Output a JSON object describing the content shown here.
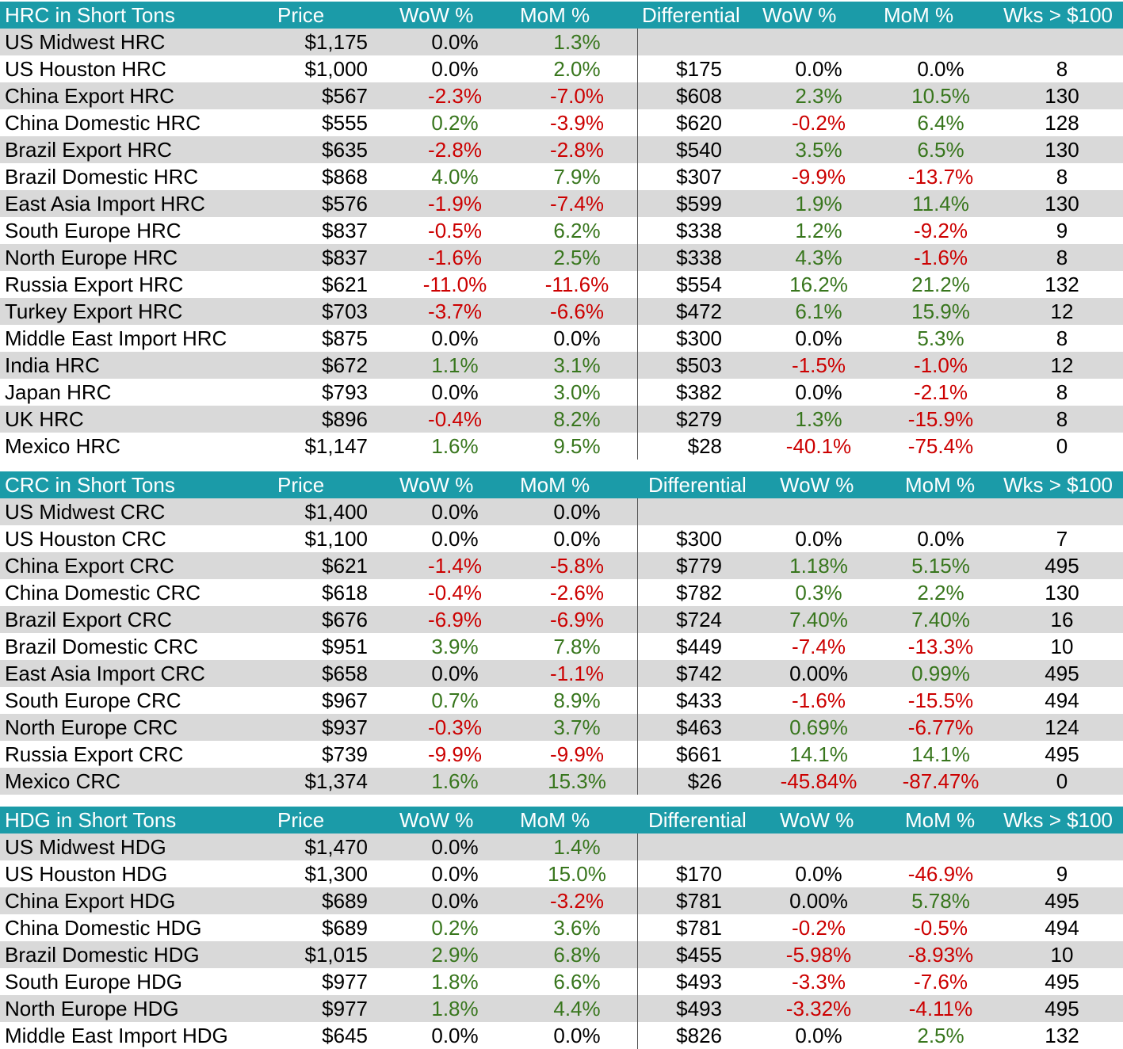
{
  "colors": {
    "header_bg": "#1B9BA8",
    "header_text": "#FFFFFF",
    "stripe": "#D9D9D9",
    "positive": "#38761D",
    "negative": "#CC0000"
  },
  "tables": [
    {
      "header": {
        "title": "HRC in Short Tons",
        "price": "Price",
        "wow": "WoW %",
        "mom": "MoM %",
        "diff": "Differential",
        "dwow": "WoW %",
        "dmom": "MoM %",
        "wks": "Wks > $100"
      },
      "rows": [
        {
          "name": "US Midwest HRC",
          "price": "$1,175",
          "wow": "0.0%",
          "mom": "1.3%",
          "diff": "",
          "dwow": "",
          "dmom": "",
          "wks": ""
        },
        {
          "name": "US Houston HRC",
          "price": "$1,000",
          "wow": "0.0%",
          "mom": "2.0%",
          "diff": "$175",
          "dwow": "0.0%",
          "dmom": "0.0%",
          "wks": "8"
        },
        {
          "name": "China Export HRC",
          "price": "$567",
          "wow": "-2.3%",
          "mom": "-7.0%",
          "diff": "$608",
          "dwow": "2.3%",
          "dmom": "10.5%",
          "wks": "130"
        },
        {
          "name": "China Domestic HRC",
          "price": "$555",
          "wow": "0.2%",
          "mom": "-3.9%",
          "diff": "$620",
          "dwow": "-0.2%",
          "dmom": "6.4%",
          "wks": "128"
        },
        {
          "name": "Brazil Export HRC",
          "price": "$635",
          "wow": "-2.8%",
          "mom": "-2.8%",
          "diff": "$540",
          "dwow": "3.5%",
          "dmom": "6.5%",
          "wks": "130"
        },
        {
          "name": "Brazil Domestic HRC",
          "price": "$868",
          "wow": "4.0%",
          "mom": "7.9%",
          "diff": "$307",
          "dwow": "-9.9%",
          "dmom": "-13.7%",
          "wks": "8"
        },
        {
          "name": "East Asia Import HRC",
          "price": "$576",
          "wow": "-1.9%",
          "mom": "-7.4%",
          "diff": "$599",
          "dwow": "1.9%",
          "dmom": "11.4%",
          "wks": "130"
        },
        {
          "name": "South Europe HRC",
          "price": "$837",
          "wow": "-0.5%",
          "mom": "6.2%",
          "diff": "$338",
          "dwow": "1.2%",
          "dmom": "-9.2%",
          "wks": "9"
        },
        {
          "name": "North Europe HRC",
          "price": "$837",
          "wow": "-1.6%",
          "mom": "2.5%",
          "diff": "$338",
          "dwow": "4.3%",
          "dmom": "-1.6%",
          "wks": "8"
        },
        {
          "name": "Russia Export HRC",
          "price": "$621",
          "wow": "-11.0%",
          "mom": "-11.6%",
          "diff": "$554",
          "dwow": "16.2%",
          "dmom": "21.2%",
          "wks": "132"
        },
        {
          "name": "Turkey Export HRC",
          "price": "$703",
          "wow": "-3.7%",
          "mom": "-6.6%",
          "diff": "$472",
          "dwow": "6.1%",
          "dmom": "15.9%",
          "wks": "12"
        },
        {
          "name": "Middle East Import HRC",
          "price": "$875",
          "wow": "0.0%",
          "mom": "0.0%",
          "diff": "$300",
          "dwow": "0.0%",
          "dmom": "5.3%",
          "wks": "8"
        },
        {
          "name": "India HRC",
          "price": "$672",
          "wow": "1.1%",
          "mom": "3.1%",
          "diff": "$503",
          "dwow": "-1.5%",
          "dmom": "-1.0%",
          "wks": "12"
        },
        {
          "name": "Japan HRC",
          "price": "$793",
          "wow": "0.0%",
          "mom": "3.0%",
          "diff": "$382",
          "dwow": "0.0%",
          "dmom": "-2.1%",
          "wks": "8"
        },
        {
          "name": "UK HRC",
          "price": "$896",
          "wow": "-0.4%",
          "mom": "8.2%",
          "diff": "$279",
          "dwow": "1.3%",
          "dmom": "-15.9%",
          "wks": "8"
        },
        {
          "name": "Mexico HRC",
          "price": "$1,147",
          "wow": "1.6%",
          "mom": "9.5%",
          "diff": "$28",
          "dwow": "-40.1%",
          "dmom": "-75.4%",
          "wks": "0"
        }
      ]
    },
    {
      "header": {
        "title": "CRC in Short Tons",
        "price": "Price",
        "wow": "WoW %",
        "mom": "MoM %",
        "diff": "Differential",
        "dwow": "WoW %",
        "dmom": "MoM %",
        "wks": "Wks > $100"
      },
      "rows": [
        {
          "name": "US Midwest CRC",
          "price": "$1,400",
          "wow": "0.0%",
          "mom": "0.0%",
          "diff": "",
          "dwow": "",
          "dmom": "",
          "wks": ""
        },
        {
          "name": "US Houston CRC",
          "price": "$1,100",
          "wow": "0.0%",
          "mom": "0.0%",
          "diff": "$300",
          "dwow": "0.0%",
          "dmom": "0.0%",
          "wks": "7"
        },
        {
          "name": "China Export CRC",
          "price": "$621",
          "wow": "-1.4%",
          "mom": "-5.8%",
          "diff": "$779",
          "dwow": "1.18%",
          "dmom": "5.15%",
          "wks": "495"
        },
        {
          "name": "China Domestic CRC",
          "price": "$618",
          "wow": "-0.4%",
          "mom": "-2.6%",
          "diff": "$782",
          "dwow": "0.3%",
          "dmom": "2.2%",
          "wks": "130"
        },
        {
          "name": "Brazil Export CRC",
          "price": "$676",
          "wow": "-6.9%",
          "mom": "-6.9%",
          "diff": "$724",
          "dwow": "7.40%",
          "dmom": "7.40%",
          "wks": "16"
        },
        {
          "name": "Brazil Domestic CRC",
          "price": "$951",
          "wow": "3.9%",
          "mom": "7.8%",
          "diff": "$449",
          "dwow": "-7.4%",
          "dmom": "-13.3%",
          "wks": "10"
        },
        {
          "name": "East Asia Import CRC",
          "price": "$658",
          "wow": "0.0%",
          "mom": "-1.1%",
          "diff": "$742",
          "dwow": "0.00%",
          "dmom": "0.99%",
          "wks": "495"
        },
        {
          "name": "South Europe CRC",
          "price": "$967",
          "wow": "0.7%",
          "mom": "8.9%",
          "diff": "$433",
          "dwow": "-1.6%",
          "dmom": "-15.5%",
          "wks": "494"
        },
        {
          "name": "North Europe CRC",
          "price": "$937",
          "wow": "-0.3%",
          "mom": "3.7%",
          "diff": "$463",
          "dwow": "0.69%",
          "dmom": "-6.77%",
          "wks": "124"
        },
        {
          "name": "Russia Export CRC",
          "price": "$739",
          "wow": "-9.9%",
          "mom": "-9.9%",
          "diff": "$661",
          "dwow": "14.1%",
          "dmom": "14.1%",
          "wks": "495"
        },
        {
          "name": "Mexico CRC",
          "price": "$1,374",
          "wow": "1.6%",
          "mom": "15.3%",
          "diff": "$26",
          "dwow": "-45.84%",
          "dmom": "-87.47%",
          "wks": "0"
        }
      ]
    },
    {
      "header": {
        "title": "HDG in Short Tons",
        "price": "Price",
        "wow": "WoW %",
        "mom": "MoM %",
        "diff": "Differential",
        "dwow": "WoW %",
        "dmom": "MoM %",
        "wks": "Wks > $100"
      },
      "rows": [
        {
          "name": "US Midwest HDG",
          "price": "$1,470",
          "wow": "0.0%",
          "mom": "1.4%",
          "diff": "",
          "dwow": "",
          "dmom": "",
          "wks": ""
        },
        {
          "name": "US Houston HDG",
          "price": "$1,300",
          "wow": "0.0%",
          "mom": "15.0%",
          "diff": "$170",
          "dwow": "0.0%",
          "dmom": "-46.9%",
          "wks": "9"
        },
        {
          "name": "China Export HDG",
          "price": "$689",
          "wow": "0.0%",
          "mom": "-3.2%",
          "diff": "$781",
          "dwow": "0.00%",
          "dmom": "5.78%",
          "wks": "495"
        },
        {
          "name": "China Domestic HDG",
          "price": "$689",
          "wow": "0.2%",
          "mom": "3.6%",
          "diff": "$781",
          "dwow": "-0.2%",
          "dmom": "-0.5%",
          "wks": "494"
        },
        {
          "name": "Brazil Domestic HDG",
          "price": "$1,015",
          "wow": "2.9%",
          "mom": "6.8%",
          "diff": "$455",
          "dwow": "-5.98%",
          "dmom": "-8.93%",
          "wks": "10"
        },
        {
          "name": "South Europe HDG",
          "price": "$977",
          "wow": "1.8%",
          "mom": "6.6%",
          "diff": "$493",
          "dwow": "-3.3%",
          "dmom": "-7.6%",
          "wks": "495"
        },
        {
          "name": "North Europe HDG",
          "price": "$977",
          "wow": "1.8%",
          "mom": "4.4%",
          "diff": "$493",
          "dwow": "-3.32%",
          "dmom": "-4.11%",
          "wks": "495"
        },
        {
          "name": "Middle East Import HDG",
          "price": "$645",
          "wow": "0.0%",
          "mom": "0.0%",
          "diff": "$826",
          "dwow": "0.0%",
          "dmom": "2.5%",
          "wks": "132"
        }
      ]
    }
  ]
}
